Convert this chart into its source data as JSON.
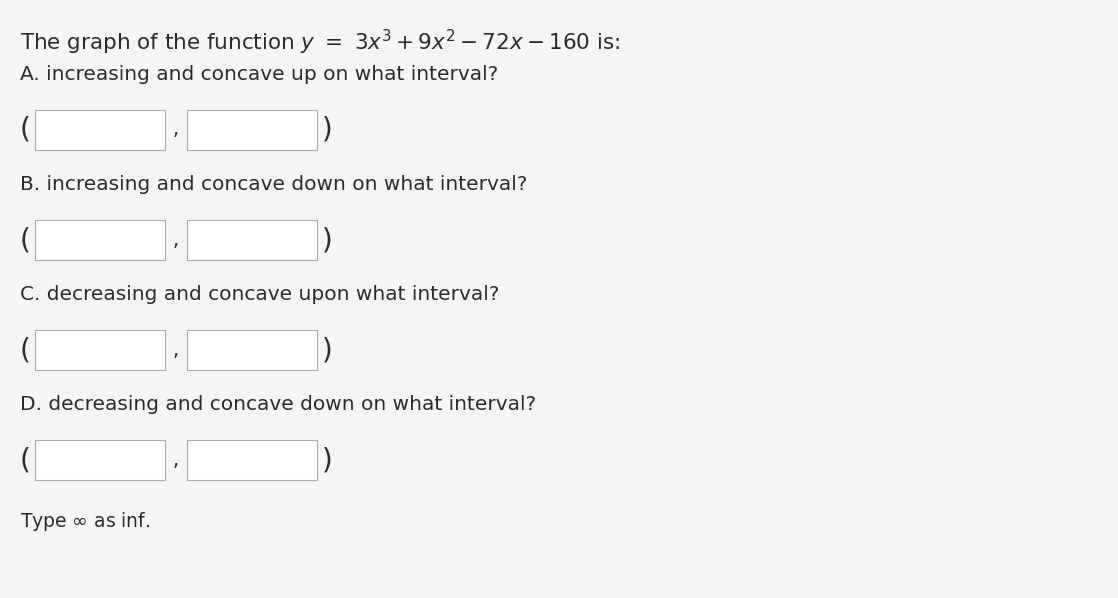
{
  "questions": [
    "A. increasing and concave up on what interval?",
    "B. increasing and concave down on what interval?",
    "C. decreasing and concave upon what interval?",
    "D. decreasing and concave down on what interval?"
  ],
  "footer": "Type ∞ as inf.",
  "background_color": "#f5f5f5",
  "text_color": "#2b2b2b",
  "box_edge_color": "#aaaaaa",
  "box_fill_color": "#ffffff",
  "font_size_title": 15.5,
  "font_size_question": 14.5,
  "font_size_footer": 13.5,
  "font_size_paren": 20,
  "font_size_comma": 14
}
